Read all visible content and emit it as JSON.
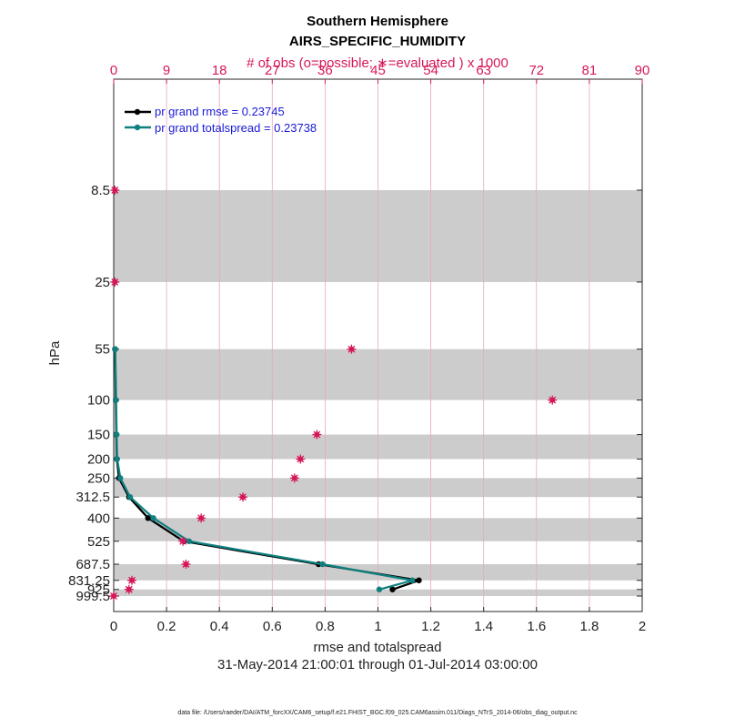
{
  "chart_data": {
    "type": "line",
    "title": "Southern Hemisphere",
    "subtitle": "AIRS_SPECIFIC_HUMIDITY",
    "top_axis_label": "# of obs (o=possible; ∗=evaluated ) x 1000",
    "xlabel": "rmse and totalspread",
    "ylabel": "hPa",
    "date_range": "31-May-2014 21:00:01 through 01-Jul-2014 03:00:00",
    "footnote": "data file: /Users/raeder/DAI/ATM_forcXX/CAM6_setup/f.e21.FHIST_BGC.f09_025.CAM6assim.011/Diags_NTrS_2014-06/obs_diag_output.nc",
    "xlim": [
      0,
      2
    ],
    "x_ticks": [
      "0",
      "0.2",
      "0.4",
      "0.6",
      "0.8",
      "1",
      "1.2",
      "1.4",
      "1.6",
      "1.8",
      "2"
    ],
    "obs_xlim": [
      0,
      90
    ],
    "obs_ticks": [
      "0",
      "9",
      "18",
      "27",
      "36",
      "45",
      "54",
      "63",
      "72",
      "81",
      "90"
    ],
    "levels": [
      8.5,
      25,
      55,
      100,
      150,
      200,
      250,
      312.5,
      400,
      525,
      687.5,
      831.25,
      925,
      999.5
    ],
    "level_labels": [
      "8.5",
      "25",
      "55",
      "100",
      "150",
      "200",
      "250",
      "312.5",
      "400",
      "525",
      "687.5",
      "831.25",
      "925",
      "999.5"
    ],
    "series": [
      {
        "name": "pr grand rmse = 0.23745",
        "color": "#000000",
        "levels": [
          55,
          100,
          150,
          200,
          250,
          312.5,
          400,
          525,
          687.5,
          831.25,
          925
        ],
        "values": [
          0.005,
          0.008,
          0.01,
          0.012,
          0.02,
          0.058,
          0.13,
          0.265,
          0.775,
          1.155,
          1.055
        ]
      },
      {
        "name": "pr grand totalspread = 0.23738",
        "color": "#0f7f7f",
        "levels": [
          55,
          100,
          150,
          200,
          250,
          312.5,
          400,
          525,
          687.5,
          831.25,
          925
        ],
        "values": [
          0.006,
          0.009,
          0.011,
          0.013,
          0.025,
          0.062,
          0.15,
          0.285,
          0.79,
          1.13,
          1.005
        ]
      }
    ],
    "obs_counts": {
      "marker_color": "#d6185a",
      "levels": [
        8.5,
        25,
        55,
        100,
        150,
        200,
        250,
        312.5,
        400,
        525,
        687.5,
        831.25,
        925,
        999.5
      ],
      "values": [
        0.2,
        0.2,
        40.5,
        74.7,
        34.6,
        31.8,
        30.8,
        22.0,
        14.9,
        11.8,
        12.3,
        3.1,
        2.6,
        0.0
      ]
    },
    "shaded_bands": [
      [
        8.5,
        25
      ],
      [
        55,
        100
      ],
      [
        150,
        200
      ],
      [
        250,
        312.5
      ],
      [
        400,
        525
      ],
      [
        687.5,
        831.25
      ],
      [
        925,
        999.5
      ]
    ]
  }
}
